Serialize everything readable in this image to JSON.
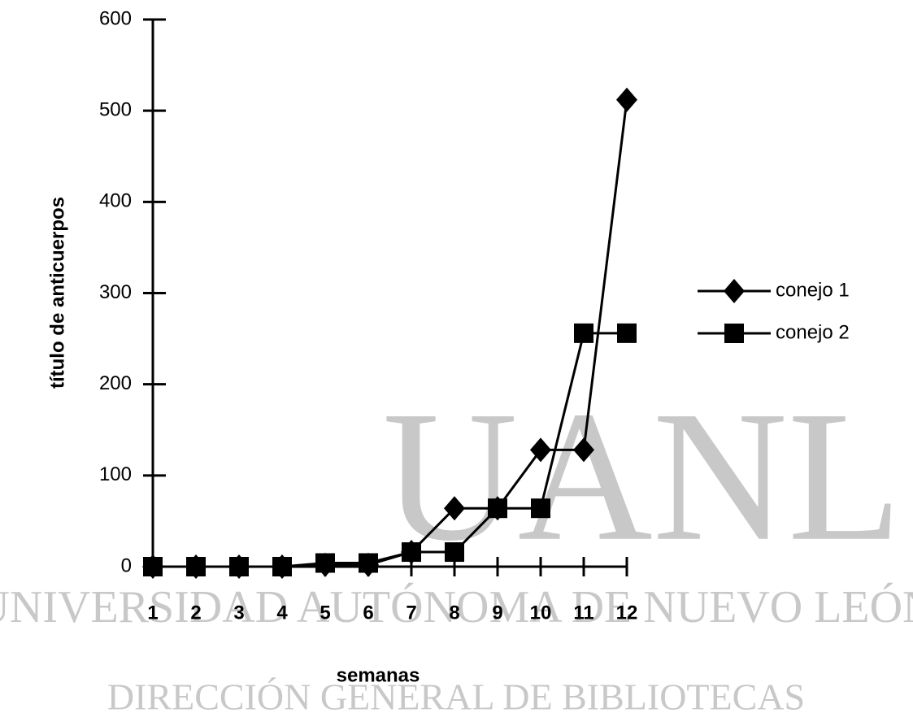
{
  "chart_data": {
    "type": "line",
    "y_label": "título de anticuerpos",
    "x_label": "semanas",
    "categories": [
      "1",
      "2",
      "3",
      "4",
      "5",
      "6",
      "7",
      "8",
      "9",
      "10",
      "11",
      "12"
    ],
    "series": [
      {
        "name": "conejo 1",
        "color": "#000000",
        "marker": "diamond",
        "values": [
          0,
          0,
          0,
          0,
          2,
          2,
          16,
          64,
          64,
          128,
          128,
          512
        ]
      },
      {
        "name": "conejo 2",
        "color": "#000000",
        "marker": "square",
        "values": [
          0,
          0,
          0,
          0,
          4,
          4,
          16,
          16,
          64,
          64,
          256,
          256
        ]
      }
    ],
    "ylim": [
      0,
      600
    ],
    "yticks": [
      0,
      100,
      200,
      300,
      400,
      500,
      600
    ],
    "grid": false,
    "legend": "right",
    "watermark": [
      "UANL",
      "UNIVERSIDAD AUTÓNOMA DE NUEVO LEÓN",
      "DIRECCIÓN GENERAL DE BIBLIOTECAS"
    ]
  }
}
